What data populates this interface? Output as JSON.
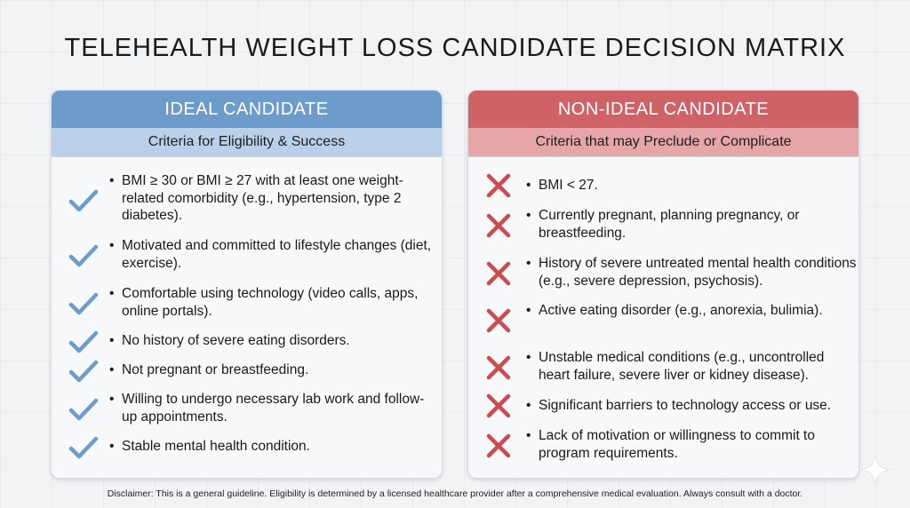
{
  "title": "TELEHEALTH WEIGHT LOSS CANDIDATE DECISION MATRIX",
  "ideal": {
    "heading": "IDEAL CANDIDATE",
    "subheading": "Criteria for Eligibility & Success",
    "accent_color": "#6d9ccb",
    "icon": "checkmark-icon",
    "items": [
      "BMI ≥ 30 or BMI ≥ 27 with at least one weight-related comorbidity (e.g., hypertension, type 2 diabetes).",
      "Motivated and committed to lifestyle changes (diet, exercise).",
      "Comfortable using technology (video calls, apps, online portals).",
      "No history of severe eating disorders.",
      "Not pregnant or breastfeeding.",
      "Willing to undergo necessary lab work and follow-up appointments.",
      "Stable mental health condition."
    ]
  },
  "non_ideal": {
    "heading": "NON-IDEAL CANDIDATE",
    "subheading": "Criteria that may Preclude or Complicate",
    "accent_color": "#cf6266",
    "icon": "x-mark-icon",
    "items": [
      "BMI < 27.",
      "Currently pregnant, planning pregnancy, or breastfeeding.",
      "History of severe untreated mental health conditions (e.g., severe depression, psychosis).",
      "Active eating disorder (e.g., anorexia, bulimia).",
      "Unstable medical conditions (e.g., uncontrolled heart failure, severe liver or kidney disease).",
      "Significant barriers to technology access or use.",
      "Lack of motivation or willingness to commit to program requirements."
    ]
  },
  "disclaimer": "Disclaimer: This is a general guideline. Eligibility is determined by a licensed healthcare provider after a comprehensive medical evaluation. Always consult with a doctor."
}
